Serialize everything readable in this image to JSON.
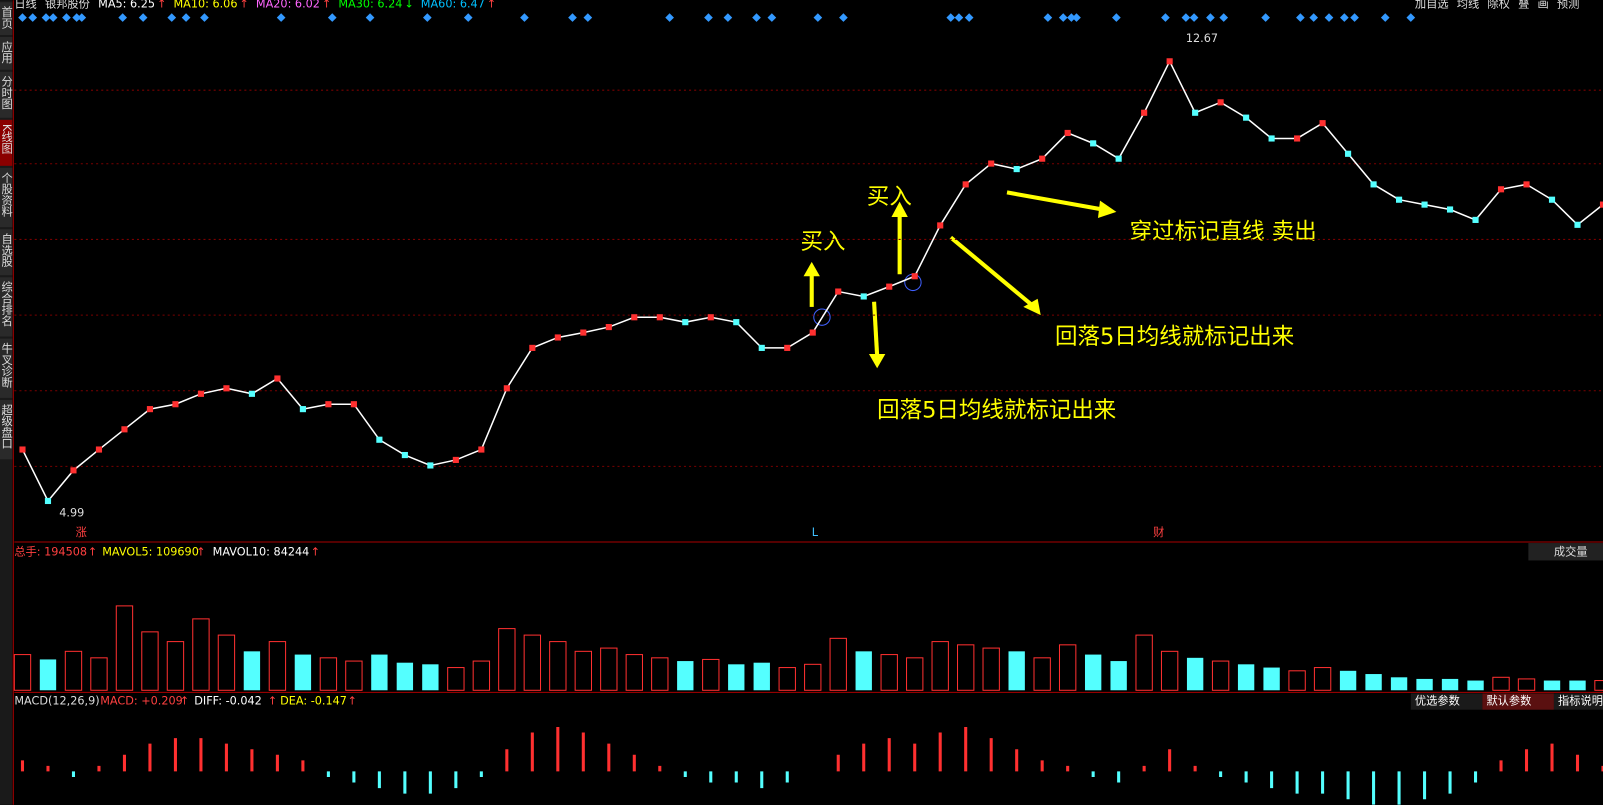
{
  "header": {
    "period": "日线",
    "stock": "银邦股份",
    "ma": [
      {
        "text": "MA5: 6.25",
        "arrow": "↑",
        "color": "#ffffff"
      },
      {
        "text": "MA10: 6.06",
        "arrow": "↑",
        "color": "#ffff00"
      },
      {
        "text": "MA20: 6.02",
        "arrow": "↑",
        "color": "#ff66ff"
      },
      {
        "text": "MA30: 6.24",
        "arrow": "↓",
        "color": "#00ff00"
      },
      {
        "text": "MA60: 6.47",
        "arrow": "↑",
        "color": "#00c0ff"
      }
    ],
    "buttons": [
      "加自选",
      "均线",
      "除权",
      "叠",
      "画",
      "预测"
    ]
  },
  "sidebar": [
    "首页",
    "应用",
    "分时图",
    "K线图",
    "个股资料",
    "自选股",
    "综合排名",
    "牛叉诊断",
    "超级盘口"
  ],
  "price": {
    "ylim": [
      4.99,
      12.67
    ],
    "high_label": "12.67",
    "low_label": "4.99",
    "closes": [
      6.0,
      5.16,
      5.66,
      6.0,
      6.33,
      6.66,
      6.74,
      6.91,
      7.0,
      6.91,
      7.16,
      6.66,
      6.74,
      6.74,
      6.16,
      5.91,
      5.74,
      5.83,
      6.0,
      7.0,
      7.66,
      7.83,
      7.91,
      8.0,
      8.16,
      8.16,
      8.08,
      8.16,
      8.08,
      7.66,
      7.66,
      7.91,
      8.58,
      8.5,
      8.66,
      8.83,
      9.66,
      10.33,
      10.67,
      10.58,
      10.75,
      11.17,
      11.0,
      10.75,
      11.5,
      12.34,
      11.5,
      11.67,
      11.42,
      11.08,
      11.08,
      11.33,
      10.83,
      10.33,
      10.08,
      10.0,
      9.92,
      9.75,
      10.25,
      10.33,
      10.08,
      9.67,
      10.0
    ],
    "markers": [
      "涨",
      "L",
      "财"
    ],
    "annotations": {
      "buy1": "买入",
      "buy2": "买入",
      "sell": "穿过标记直线 卖出",
      "note1": "回落5日均线就标记出来",
      "note2": "回落5日均线就标记出来"
    }
  },
  "volume": {
    "ylim": [
      0,
      400000
    ],
    "total": "总手: 194508",
    "mavol5": "MAVOL5: 109690",
    "mavol10": "MAVOL10: 84244",
    "arrow": "↑",
    "tab": "成交量",
    "values": [
      110000,
      95000,
      120000,
      100000,
      260000,
      180000,
      150000,
      220000,
      170000,
      120000,
      150000,
      110000,
      100000,
      90000,
      110000,
      85000,
      80000,
      70000,
      90000,
      190000,
      170000,
      150000,
      120000,
      130000,
      110000,
      100000,
      90000,
      95000,
      80000,
      85000,
      70000,
      80000,
      160000,
      120000,
      110000,
      100000,
      150000,
      140000,
      130000,
      120000,
      100000,
      140000,
      110000,
      90000,
      170000,
      120000,
      100000,
      90000,
      80000,
      70000,
      60000,
      70000,
      60000,
      50000,
      40000,
      35000,
      35000,
      30000,
      40000,
      35000,
      30000,
      30000,
      30000
    ]
  },
  "macd": {
    "ylim": [
      -0.3,
      0.5
    ],
    "name": "MACD(12,26,9)",
    "macd": "MACD: +0.209",
    "diff": "DIFF: -0.042",
    "dea": "DEA: -0.147",
    "arrow": "↑",
    "buttons": [
      "优选参数",
      "默认参数",
      "指标说明"
    ],
    "hist": [
      0.1,
      0.05,
      -0.05,
      0.05,
      0.15,
      0.25,
      0.3,
      0.3,
      0.25,
      0.2,
      0.15,
      0.1,
      -0.05,
      -0.1,
      -0.15,
      -0.2,
      -0.2,
      -0.15,
      -0.05,
      0.2,
      0.35,
      0.4,
      0.35,
      0.25,
      0.15,
      0.05,
      -0.05,
      -0.1,
      -0.1,
      -0.15,
      -0.1,
      0.0,
      0.15,
      0.25,
      0.3,
      0.25,
      0.35,
      0.4,
      0.3,
      0.2,
      0.1,
      0.05,
      -0.05,
      -0.1,
      0.05,
      0.2,
      0.05,
      -0.05,
      -0.1,
      -0.15,
      -0.2,
      -0.2,
      -0.25,
      -0.3,
      -0.3,
      -0.25,
      -0.2,
      -0.1,
      0.1,
      0.2,
      0.25,
      0.15,
      0.05
    ]
  }
}
